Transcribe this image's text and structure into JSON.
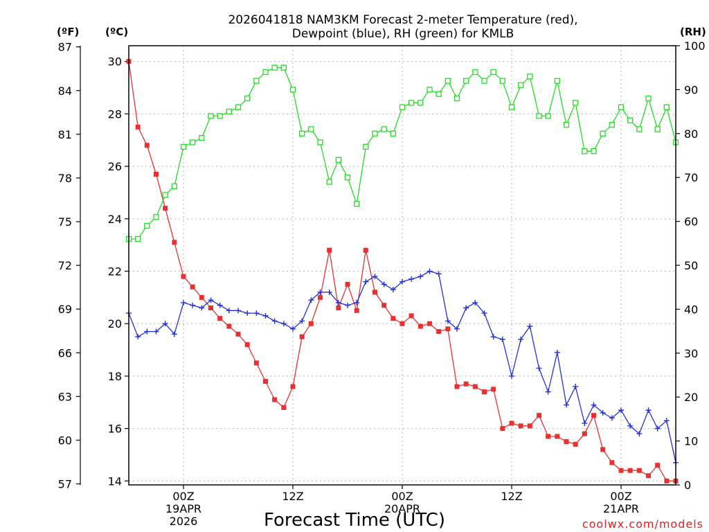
{
  "chart_data": {
    "type": "line",
    "title": [
      "2026041818 NAM3KM Forecast 2-meter Temperature (red),",
      "Dewpoint (blue), RH (green) for KMLB"
    ],
    "xlabel": "Forecast Time (UTC)",
    "credit": "coolwx.com/models",
    "units": {
      "left_f": "(ºF)",
      "left_c": "(ºC)",
      "right": "(RH)"
    },
    "y_c_range": [
      13.85,
      30.6
    ],
    "y_rh_range": [
      0,
      100
    ],
    "x_hour_range": [
      0,
      60
    ],
    "y_f_ticks": [
      "57",
      "60",
      "63",
      "66",
      "69",
      "72",
      "75",
      "78",
      "81",
      "84",
      "87"
    ],
    "y_c_ticks": [
      "14",
      "16",
      "18",
      "20",
      "22",
      "24",
      "26",
      "28",
      "30"
    ],
    "y_rh_ticks": [
      "0",
      "10",
      "20",
      "30",
      "40",
      "50",
      "60",
      "70",
      "80",
      "90",
      "100"
    ],
    "x_ticks": [
      {
        "hour": 6,
        "label": "00Z",
        "sub": [
          "19APR",
          "2026"
        ]
      },
      {
        "hour": 18,
        "label": "12Z",
        "sub": []
      },
      {
        "hour": 30,
        "label": "00Z",
        "sub": [
          "20APR"
        ]
      },
      {
        "hour": 42,
        "label": "12Z",
        "sub": []
      },
      {
        "hour": 54,
        "label": "00Z",
        "sub": [
          "21APR"
        ]
      }
    ],
    "series": [
      {
        "name": "2-meter Temperature (°C)",
        "color": "#e83030",
        "marker": "filled-square",
        "values": [
          30.0,
          27.5,
          26.8,
          25.7,
          24.4,
          23.1,
          21.8,
          21.4,
          21.0,
          20.6,
          20.2,
          19.9,
          19.6,
          19.2,
          18.5,
          17.8,
          17.1,
          16.8,
          17.6,
          19.5,
          20.0,
          21.0,
          22.8,
          20.6,
          21.5,
          20.5,
          22.8,
          21.2,
          20.7,
          20.2,
          20.0,
          20.3,
          19.9,
          20.0,
          19.7,
          19.8,
          17.6,
          17.7,
          17.6,
          17.4,
          17.5,
          16.0,
          16.2,
          16.1,
          16.1,
          16.5,
          15.7,
          15.7,
          15.5,
          15.4,
          15.8,
          16.5,
          15.2,
          14.7,
          14.4,
          14.4,
          14.4,
          14.2,
          14.6,
          14.0,
          14.0
        ],
        "y_axis": "c"
      },
      {
        "name": "Dewpoint (°C)",
        "color": "#2030e0",
        "marker": "cross",
        "values": [
          20.4,
          19.5,
          19.7,
          19.7,
          20.0,
          19.6,
          20.8,
          20.7,
          20.6,
          20.9,
          20.7,
          20.5,
          20.5,
          20.4,
          20.4,
          20.3,
          20.1,
          20.0,
          19.8,
          20.1,
          20.9,
          21.2,
          21.2,
          20.8,
          20.7,
          20.8,
          21.6,
          21.8,
          21.5,
          21.3,
          21.6,
          21.7,
          21.8,
          22.0,
          21.9,
          20.1,
          19.8,
          20.6,
          20.8,
          20.4,
          19.5,
          19.4,
          18.0,
          19.4,
          19.9,
          18.3,
          17.4,
          18.9,
          16.9,
          17.6,
          16.2,
          16.9,
          16.6,
          16.4,
          16.7,
          16.1,
          15.8,
          16.7,
          16.0,
          16.3,
          14.7
        ],
        "y_axis": "c"
      },
      {
        "name": "RH (%)",
        "color": "#22dd22",
        "marker": "open-square",
        "values": [
          56,
          56,
          59,
          61,
          66,
          68,
          77,
          78,
          79,
          84,
          84,
          85,
          86,
          88,
          92,
          94,
          95,
          95,
          90,
          80,
          81,
          78,
          69,
          74,
          70,
          64,
          77,
          80,
          81,
          80,
          86,
          87,
          87,
          90,
          89,
          92,
          88,
          92,
          94,
          92,
          94,
          92,
          86,
          91,
          93,
          84,
          84,
          92,
          82,
          87,
          76,
          76,
          80,
          82,
          86,
          83,
          81,
          88,
          81,
          86,
          78
        ],
        "y_axis": "rh"
      }
    ]
  }
}
